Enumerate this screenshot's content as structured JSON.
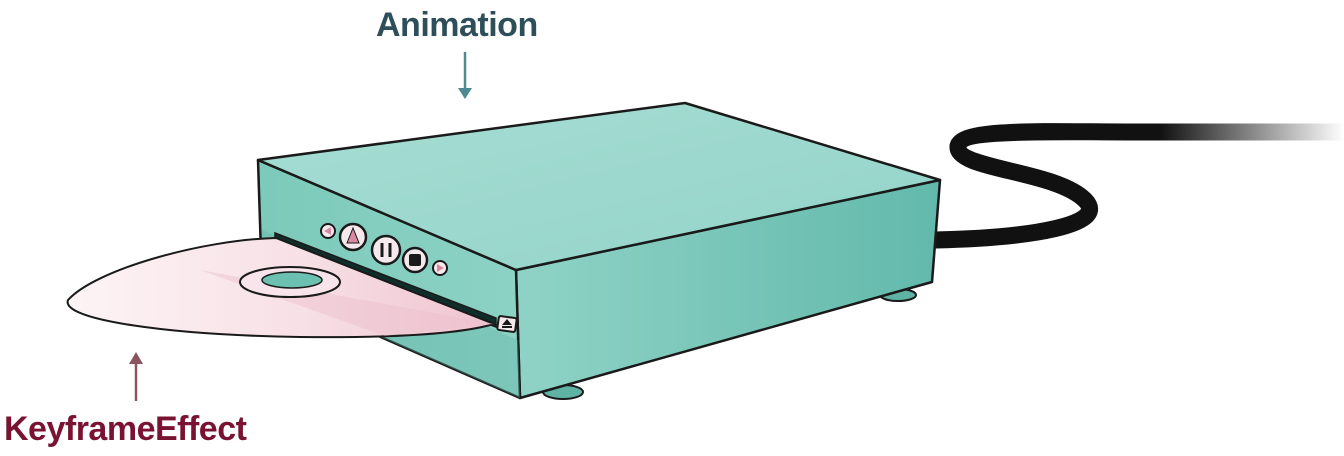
{
  "labels": {
    "animation": "Animation",
    "keyframe_effect": "KeyframeEffect"
  },
  "colors": {
    "animation_label": "#2e4f5a",
    "animation_arrow": "#4f8a93",
    "keyframe_label": "#7a1332",
    "keyframe_arrow": "#8a5560",
    "box_top": "#9ed9cf",
    "box_front": "#7dcabd",
    "box_side": "#6bbfb1",
    "box_shadow": "#4fa596",
    "outline": "#1a1a1a",
    "disc_light": "#fbeef1",
    "disc_mid": "#f2cfd8",
    "disc_hub": "#6cc0b2",
    "button_face": "#f6e9ee",
    "button_accent": "#d98aa3",
    "cable": "#111111"
  },
  "icons": {
    "buttons": [
      "rewind-icon",
      "play-icon",
      "pause-icon",
      "stop-icon",
      "fast-forward-icon"
    ],
    "eject": "eject-icon"
  }
}
